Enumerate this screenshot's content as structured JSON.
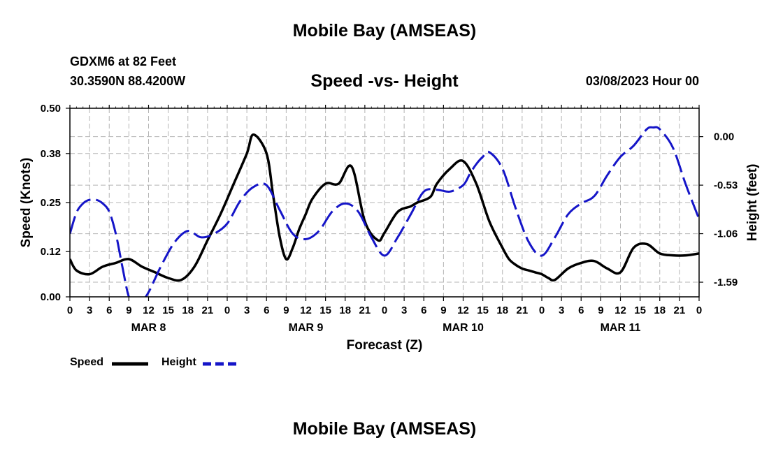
{
  "header": {
    "title": "Mobile Bay (AMSEAS)",
    "station": "GDXM6 at 82 Feet",
    "coordinates": "30.3590N  88.4200W",
    "subtitle": "Speed -vs- Height",
    "datetime": "03/08/2023 Hour 00"
  },
  "footer": {
    "title": "Mobile Bay (AMSEAS)"
  },
  "legend": {
    "speed_label": "Speed",
    "height_label": "Height"
  },
  "colors": {
    "speed": "#000000",
    "height": "#1515c8",
    "grid": "#b4b4b4"
  },
  "chart_data": {
    "type": "line",
    "title": "Speed -vs- Height",
    "xlabel": "Forecast (Z)",
    "ylabel": "Speed (Knots)",
    "y2label": "Height (feet)",
    "xlim": [
      0,
      96
    ],
    "ylim": [
      0,
      0.5
    ],
    "y2lim": [
      -1.75,
      0.31
    ],
    "x_ticks": [
      0,
      3,
      6,
      9,
      12,
      15,
      18,
      21,
      24,
      27,
      30,
      33,
      36,
      39,
      42,
      45,
      48,
      51,
      54,
      57,
      60,
      63,
      66,
      69,
      72,
      75,
      78,
      81,
      84,
      87,
      90,
      93,
      96
    ],
    "x_tick_labels": [
      "0",
      "3",
      "6",
      "9",
      "12",
      "15",
      "18",
      "21",
      "0",
      "3",
      "6",
      "9",
      "12",
      "15",
      "18",
      "21",
      "0",
      "3",
      "6",
      "9",
      "12",
      "15",
      "18",
      "21",
      "0",
      "3",
      "6",
      "9",
      "12",
      "15",
      "18",
      "21",
      "0"
    ],
    "day_labels": [
      {
        "label": "MAR 8",
        "x": 12
      },
      {
        "label": "MAR 9",
        "x": 36
      },
      {
        "label": "MAR 10",
        "x": 60
      },
      {
        "label": "MAR 11",
        "x": 84
      }
    ],
    "y_ticks": [
      0.0,
      0.12,
      0.25,
      0.38,
      0.5
    ],
    "y_tick_labels": [
      "0.00",
      "0.12",
      "0.25",
      "0.38",
      "0.50"
    ],
    "y2_ticks": [
      0.0,
      -0.53,
      -1.06,
      -1.59
    ],
    "y2_tick_labels": [
      "0.00",
      "-0.53",
      "-1.06",
      "-1.59"
    ],
    "grid": true,
    "series": [
      {
        "name": "Speed",
        "axis": "left",
        "style": "solid",
        "x": [
          0,
          1,
          3,
          5,
          7,
          9,
          11,
          13,
          15,
          17,
          19,
          21,
          23,
          25,
          27,
          28,
          30,
          31,
          32,
          33,
          34,
          35,
          36,
          37,
          39,
          41,
          43,
          45,
          47,
          48,
          50,
          52,
          53,
          55,
          56,
          58,
          60,
          62,
          64,
          66,
          67,
          68,
          69,
          70,
          71,
          72,
          73,
          74,
          76,
          78,
          80,
          82,
          84,
          86,
          88,
          90,
          92,
          94,
          96
        ],
        "y": [
          0.1,
          0.07,
          0.06,
          0.08,
          0.09,
          0.1,
          0.08,
          0.065,
          0.05,
          0.045,
          0.08,
          0.15,
          0.22,
          0.3,
          0.38,
          0.43,
          0.38,
          0.27,
          0.16,
          0.1,
          0.13,
          0.18,
          0.22,
          0.26,
          0.3,
          0.3,
          0.345,
          0.2,
          0.15,
          0.17,
          0.225,
          0.24,
          0.25,
          0.265,
          0.3,
          0.34,
          0.36,
          0.3,
          0.2,
          0.13,
          0.1,
          0.085,
          0.075,
          0.07,
          0.065,
          0.06,
          0.05,
          0.045,
          0.075,
          0.09,
          0.095,
          0.075,
          0.065,
          0.13,
          0.14,
          0.115,
          0.11,
          0.11,
          0.115
        ]
      },
      {
        "name": "Height",
        "axis": "right",
        "style": "dashed",
        "x": [
          0,
          1,
          2,
          3,
          4,
          5,
          6,
          7,
          8,
          9,
          10,
          11,
          12,
          13,
          14,
          16,
          18,
          20,
          22,
          24,
          26,
          28,
          30,
          32,
          34,
          36,
          38,
          40,
          42,
          44,
          46,
          48,
          50,
          52,
          54,
          56,
          58,
          60,
          61,
          62,
          63,
          64,
          66,
          68,
          70,
          72,
          74,
          76,
          78,
          80,
          82,
          84,
          86,
          88,
          89,
          90,
          92,
          94,
          96
        ],
        "y": [
          -1.06,
          -0.83,
          -0.73,
          -0.69,
          -0.69,
          -0.73,
          -0.82,
          -1.06,
          -1.42,
          -1.75,
          -1.8,
          -1.8,
          -1.7,
          -1.55,
          -1.4,
          -1.15,
          -1.03,
          -1.1,
          -1.06,
          -0.95,
          -0.7,
          -0.55,
          -0.53,
          -0.8,
          -1.06,
          -1.12,
          -1.03,
          -0.82,
          -0.73,
          -0.82,
          -1.1,
          -1.3,
          -1.1,
          -0.85,
          -0.6,
          -0.58,
          -0.6,
          -0.53,
          -0.41,
          -0.3,
          -0.22,
          -0.17,
          -0.35,
          -0.78,
          -1.15,
          -1.3,
          -1.1,
          -0.85,
          -0.73,
          -0.65,
          -0.42,
          -0.22,
          -0.1,
          0.08,
          0.1,
          0.08,
          -0.12,
          -0.53,
          -0.9
        ]
      }
    ]
  }
}
